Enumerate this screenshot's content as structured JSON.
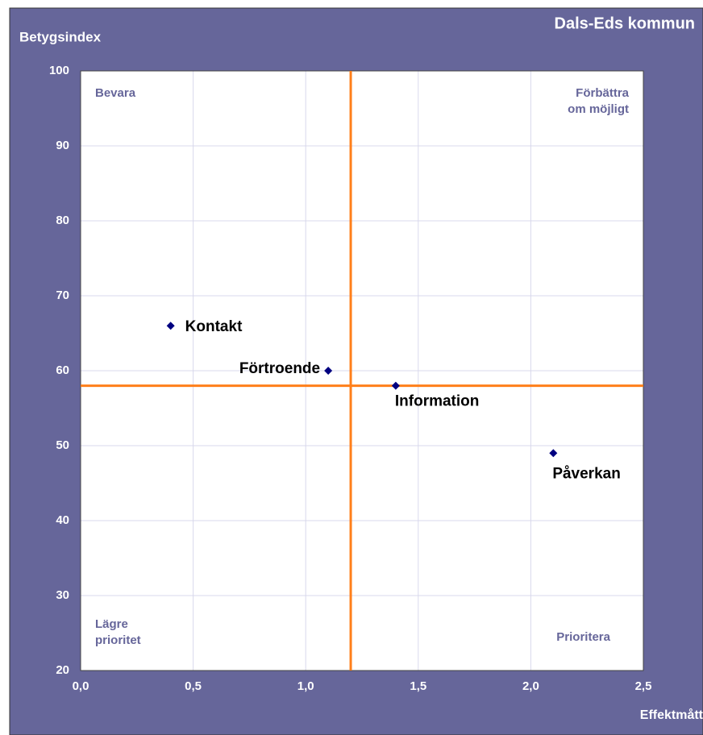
{
  "chart_data": {
    "type": "scatter",
    "title": "Dals-Eds kommun",
    "ylabel": "Betygsindex",
    "xlabel": "Effektmått",
    "color": "#000080",
    "refline_color": "#ff7f1a",
    "grid": true,
    "points": [
      {
        "label": "Kontakt",
        "x": 0.4,
        "y": 66
      },
      {
        "label": "Förtroende",
        "x": 1.1,
        "y": 60
      },
      {
        "label": "Information",
        "x": 1.4,
        "y": 58
      },
      {
        "label": "Påverkan",
        "x": 2.1,
        "y": 49
      }
    ],
    "ref_x": 1.2,
    "ref_y": 58,
    "quadrant_labels": [
      {
        "lines": [
          "Bevara"
        ]
      },
      {
        "lines": [
          "Förbättra",
          "om möjligt"
        ]
      },
      {
        "lines": [
          "Lägre",
          "prioritet"
        ]
      },
      {
        "lines": [
          "Prioritera"
        ]
      }
    ],
    "xlim": [
      0,
      2.5
    ],
    "xticks": [
      {
        "value": 0,
        "label": "0,0"
      },
      {
        "value": 0.5,
        "label": "0,5"
      },
      {
        "value": 1,
        "label": "1,0"
      },
      {
        "value": 1.5,
        "label": "1,5"
      },
      {
        "value": 2,
        "label": "2,0"
      },
      {
        "value": 2.5,
        "label": "2,5"
      }
    ],
    "ylim": [
      20,
      100
    ],
    "yticks": [
      20,
      30,
      40,
      50,
      60,
      70,
      80,
      90,
      100
    ]
  }
}
